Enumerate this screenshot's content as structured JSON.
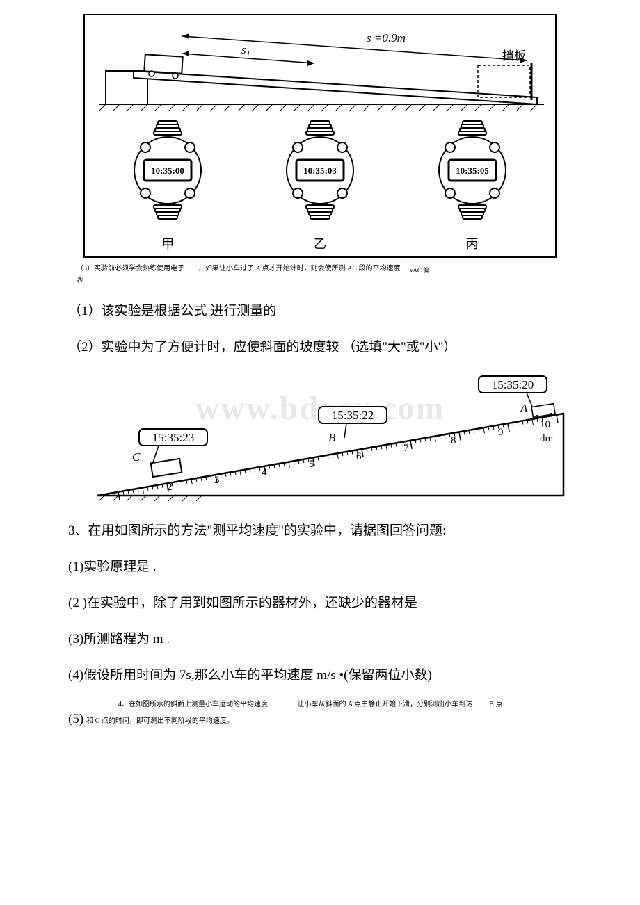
{
  "watermark": "www.bdocx.com",
  "fig1": {
    "distance_label": "s =0.9m",
    "s1_label": "s₁",
    "baffle_label": "挡板",
    "watch_times": [
      "10:35:00",
      "10:35:03",
      "10:35:05"
    ],
    "watch_labels": [
      "甲",
      "乙",
      "丙"
    ]
  },
  "small_note": {
    "left": "（3）实验前必须学会熟练使用电子",
    "mid": "，如果让小车过了 A 点才开始计时，则会使所测 AC 段的平均速度",
    "vac": "VAC 偏",
    "second_line": "表"
  },
  "q1": "（1）该实验是根据公式  进行测量的",
  "q2": "（2）实验中为了方便计时，应使斜面的坡度较 （选填\"大\"或\"小\"）",
  "fig2": {
    "time_a": "15:35:20",
    "time_b": "15:35:22",
    "time_c": "15:35:23",
    "label_a": "A",
    "label_b": "B",
    "label_c": "C",
    "unit": "dm",
    "ticks": [
      "2",
      "3",
      "4",
      "5",
      "6",
      "7",
      "8",
      "9",
      "10"
    ]
  },
  "q3_intro": "3、在用如图所示的方法\"测平均速度\"的实验中，请据图回答问题:",
  "q3_1": "(1)实验原理是 .",
  "q3_2": "(2 )在实验中，除了用到如图所示的器材外，还缺少的器材是",
  "q3_3": "(3)所测路程为 m .",
  "q3_4": "(4)假设所用时间为 7s,那么小车的平均速度 m/s •(保留两位小数)",
  "q4_note": {
    "line1_left": "4、在如图所示的斜面上测量小车运动的平均速度.",
    "line1_right": "让小车从斜面的 A 点由静止开始下滑，分别测出小车到达",
    "line1_end": "B 点",
    "line2": "和 C 点的时间，即可测出不同阶段的平均速度。"
  },
  "q5_label": "(5)"
}
